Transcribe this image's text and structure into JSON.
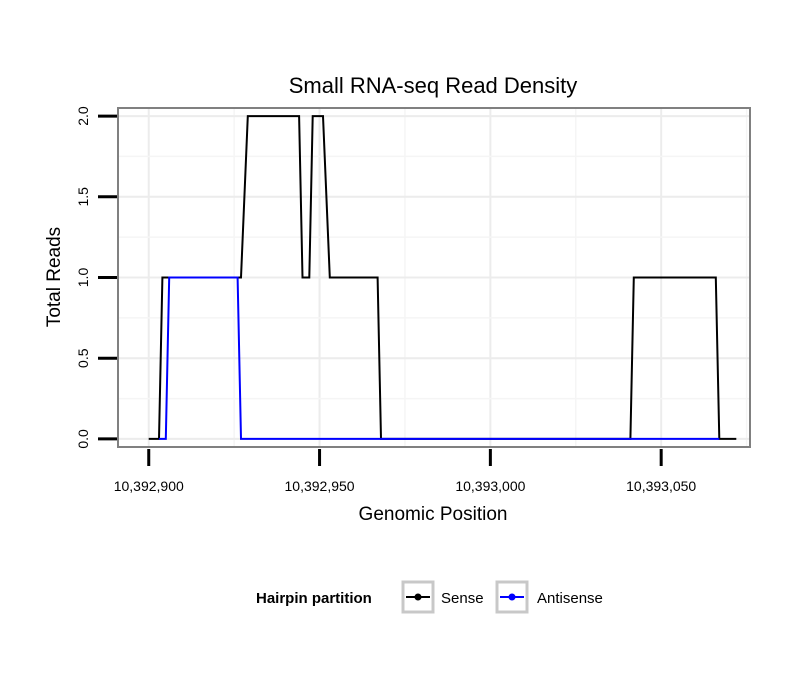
{
  "chart_data": {
    "type": "line",
    "title": "Small RNA-seq Read Density",
    "xlabel": "Genomic Position",
    "ylabel": "Total Reads",
    "xlim": [
      10392891,
      10393076
    ],
    "ylim": [
      -0.05,
      2.05
    ],
    "x_ticks": [
      10392900,
      10392950,
      10393000,
      10393050
    ],
    "x_tick_labels": [
      "10,392,900",
      "10,392,950",
      "10,393,000",
      "10,393,050"
    ],
    "y_ticks": [
      0,
      0.5,
      1,
      1.5,
      2
    ],
    "y_tick_labels": [
      "0.0",
      "0.5",
      "1.0",
      "1.5",
      "2.0"
    ],
    "grid": true,
    "legend": {
      "title": "Hairpin partition",
      "placement": "bottom",
      "entries": [
        {
          "label": "Sense",
          "color": "#000000"
        },
        {
          "label": "Antisense",
          "color": "#0000ff"
        }
      ]
    },
    "series": [
      {
        "name": "Sense",
        "color": "#000000",
        "x": [
          10392900,
          10392903,
          10392904,
          10392926,
          10392927,
          10392929,
          10392944,
          10392945,
          10392947,
          10392948,
          10392951,
          10392953,
          10392967,
          10392968,
          10393041,
          10393042,
          10393066,
          10393067,
          10393072
        ],
        "y": [
          0,
          0,
          1,
          1,
          1,
          2,
          2,
          1,
          1,
          2,
          2,
          1,
          1,
          0,
          0,
          1,
          1,
          0,
          0
        ]
      },
      {
        "name": "Antisense",
        "color": "#0000ff",
        "x": [
          10392903,
          10392905,
          10392906,
          10392926,
          10392927,
          10393041,
          10393067
        ],
        "y": [
          0,
          0,
          1,
          1,
          0,
          0,
          0
        ]
      }
    ]
  }
}
